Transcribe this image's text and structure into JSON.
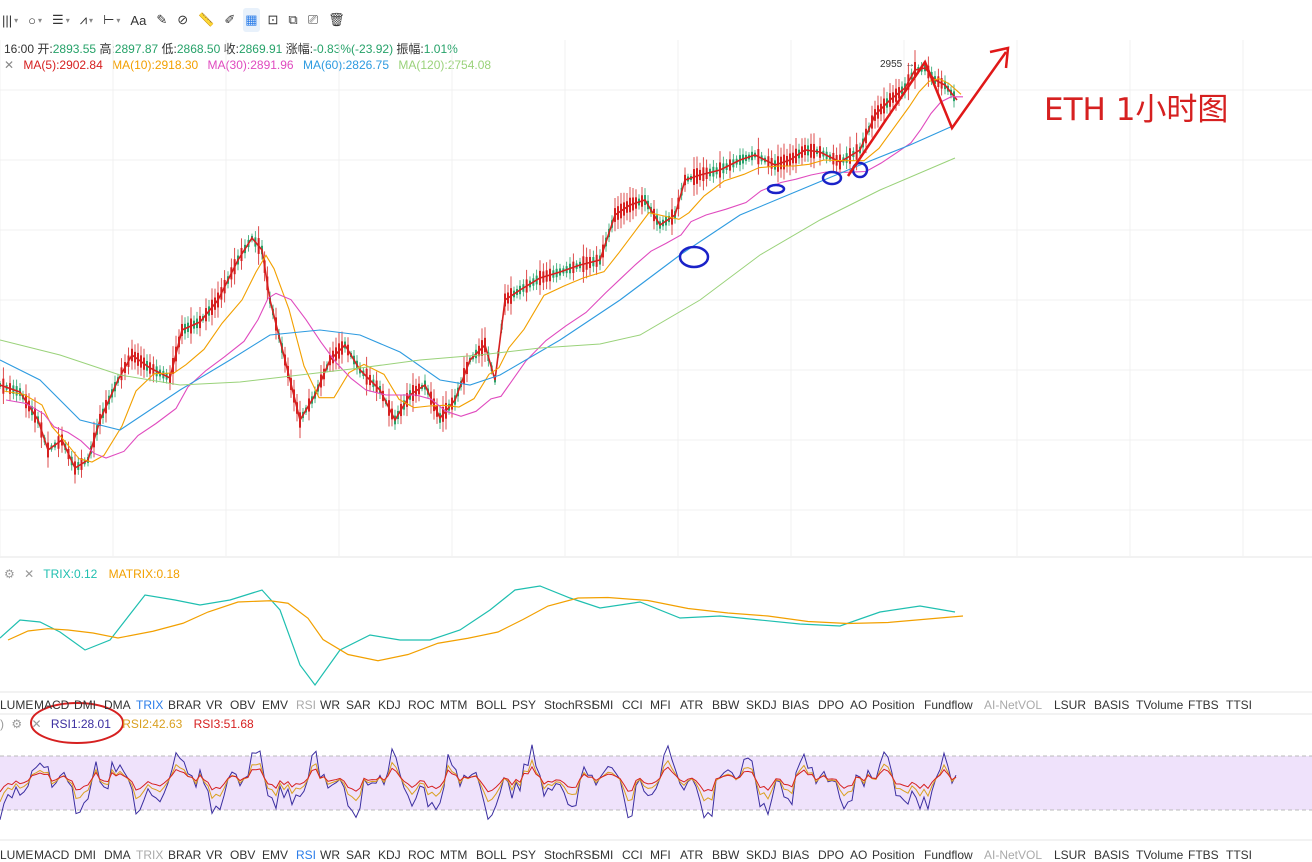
{
  "toolbar": {
    "items": [
      {
        "name": "columns-icon",
        "glyph": "|||",
        "caret": true
      },
      {
        "name": "circle-tool-icon",
        "glyph": "○",
        "caret": true
      },
      {
        "name": "lines-tool-icon",
        "glyph": "☰",
        "caret": true
      },
      {
        "name": "pattern-tool-icon",
        "glyph": "⩘",
        "caret": true
      },
      {
        "name": "measure-tool-icon",
        "glyph": "⊢",
        "caret": true
      },
      {
        "name": "text-tool-icon",
        "glyph": "Aa",
        "caret": false
      },
      {
        "name": "brush-tool-icon",
        "glyph": "✎",
        "caret": false
      },
      {
        "name": "magnet-icon",
        "glyph": "⊘",
        "caret": false
      },
      {
        "name": "ruler-icon",
        "glyph": "📏",
        "caret": false
      },
      {
        "name": "pen-icon",
        "glyph": "✐",
        "caret": false
      },
      {
        "name": "grid-icon",
        "glyph": "▦",
        "caret": false,
        "active": true
      },
      {
        "name": "lock-icon",
        "glyph": "⊡",
        "caret": false
      },
      {
        "name": "copy-icon",
        "glyph": "⧉",
        "caret": false
      },
      {
        "name": "screenshot-icon",
        "glyph": "⎚",
        "caret": false
      },
      {
        "name": "trash-icon",
        "glyph": "🗑",
        "caret": false
      }
    ]
  },
  "ohlc": {
    "time": "16:00",
    "open_label": "开:",
    "open": "2893.55",
    "high_label": "高:",
    "high": "2897.87",
    "low_label": "低:",
    "low": "2868.50",
    "close_label": "收:",
    "close": "2869.91",
    "change_label": "涨幅:",
    "change": "-0.83%(-23.92)",
    "amp_label": "振幅:",
    "amp": "1.01%"
  },
  "ma": [
    {
      "label": "MA(5):2902.84",
      "color": "#d62020"
    },
    {
      "label": "MA(10):2918.30",
      "color": "#f2a000"
    },
    {
      "label": "MA(30):2891.96",
      "color": "#e04bbf"
    },
    {
      "label": "MA(60):2826.75",
      "color": "#2e9be0"
    },
    {
      "label": "MA(120):2754.08",
      "color": "#9ad27a"
    }
  ],
  "annotation": {
    "title": "ETH 1小时图",
    "price_marker": "2955 →"
  },
  "trix": {
    "trix": "TRIX:0.12",
    "matrix": "MATRIX:0.18",
    "trix_color": "#1fbfb0",
    "matrix_color": "#f2a000"
  },
  "indicator_tabs": [
    "LUME",
    "MACD",
    "DMI",
    "DMA",
    "TRIX",
    "BRAR",
    "VR",
    "OBV",
    "EMV",
    "RSI",
    "WR",
    "SAR",
    "KDJ",
    "ROC",
    "MTM",
    "BOLL",
    "PSY",
    "StochRSI",
    "SMI",
    "CCI",
    "MFI",
    "ATR",
    "BBW",
    "SKDJ",
    "BIAS",
    "DPO",
    "AO",
    "Position",
    "Fundflow",
    "AI-NetVOL",
    "LSUR",
    "BASIS",
    "TVolume",
    "FTBS",
    "TTSI"
  ],
  "active_tab_top": "TRIX",
  "active_tab_bottom": "RSI",
  "dim_tabs_top": [
    "RSI",
    "AI-NetVOL"
  ],
  "dim_tabs_bottom": [
    "TRIX",
    "AI-NetVOL"
  ],
  "rsi": {
    "rsi1": "RSI1:28.01",
    "rsi2": "RSI2:42.63",
    "rsi3": "RSI3:51.68",
    "rsi1_color": "#3b2ea0",
    "rsi2_color": "#d9a020",
    "rsi3_color": "#d62020"
  },
  "colors": {
    "up": "#26a269",
    "down": "#d62020",
    "band": "#efe2fb",
    "active": "#2b7de9"
  }
}
